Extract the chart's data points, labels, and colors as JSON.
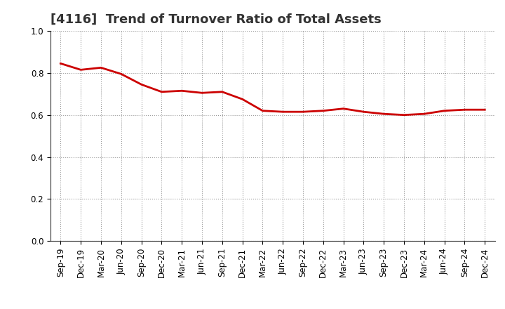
{
  "title": "[4116]  Trend of Turnover Ratio of Total Assets",
  "x_labels": [
    "Sep-19",
    "Dec-19",
    "Mar-20",
    "Jun-20",
    "Sep-20",
    "Dec-20",
    "Mar-21",
    "Jun-21",
    "Sep-21",
    "Dec-21",
    "Mar-22",
    "Jun-22",
    "Sep-22",
    "Dec-22",
    "Mar-23",
    "Jun-23",
    "Sep-23",
    "Dec-23",
    "Mar-24",
    "Jun-24",
    "Sep-24",
    "Dec-24"
  ],
  "values": [
    0.845,
    0.815,
    0.825,
    0.795,
    0.745,
    0.71,
    0.715,
    0.705,
    0.71,
    0.675,
    0.62,
    0.615,
    0.615,
    0.62,
    0.63,
    0.615,
    0.605,
    0.6,
    0.605,
    0.62,
    0.625,
    0.625
  ],
  "line_color": "#cc0000",
  "line_width": 2.0,
  "ylim": [
    0.0,
    1.0
  ],
  "yticks": [
    0.0,
    0.2,
    0.4,
    0.6,
    0.8,
    1.0
  ],
  "background_color": "#ffffff",
  "grid_color": "#999999",
  "title_fontsize": 13,
  "tick_fontsize": 8.5
}
